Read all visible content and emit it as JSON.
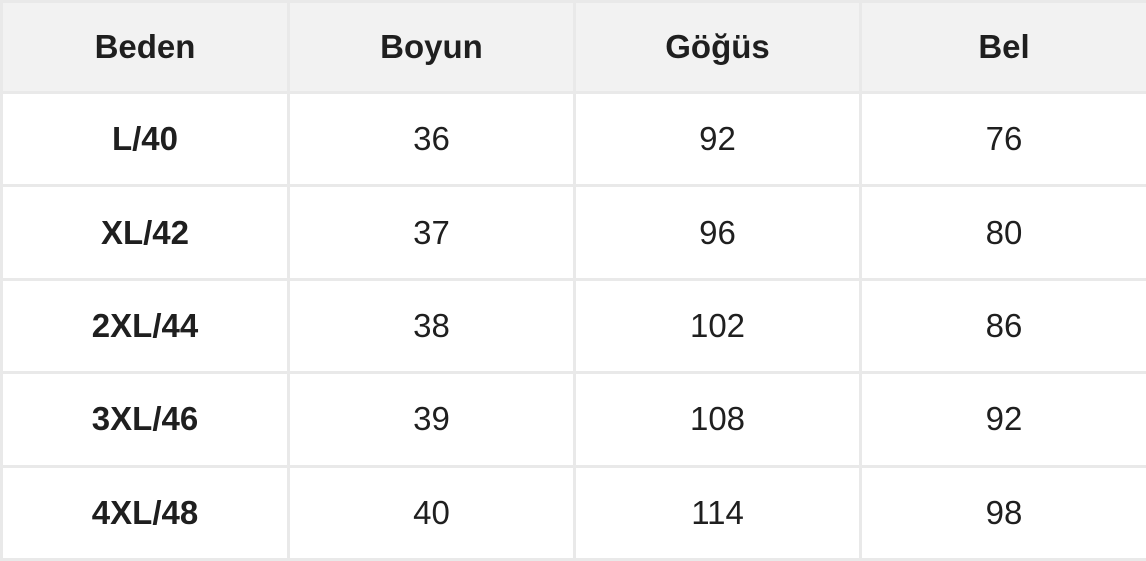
{
  "table": {
    "headers": [
      "Beden",
      "Boyun",
      "Göğüs",
      "Bel"
    ],
    "rows": [
      [
        "L/40",
        "36",
        "92",
        "76"
      ],
      [
        "XL/42",
        "37",
        "96",
        "80"
      ],
      [
        "2XL/44",
        "38",
        "102",
        "86"
      ],
      [
        "3XL/46",
        "39",
        "108",
        "92"
      ],
      [
        "4XL/48",
        "40",
        "114",
        "98"
      ]
    ]
  },
  "colors": {
    "header_background": "#f2f2f2",
    "border": "#e9e9e9",
    "text": "#1f1f1f"
  }
}
